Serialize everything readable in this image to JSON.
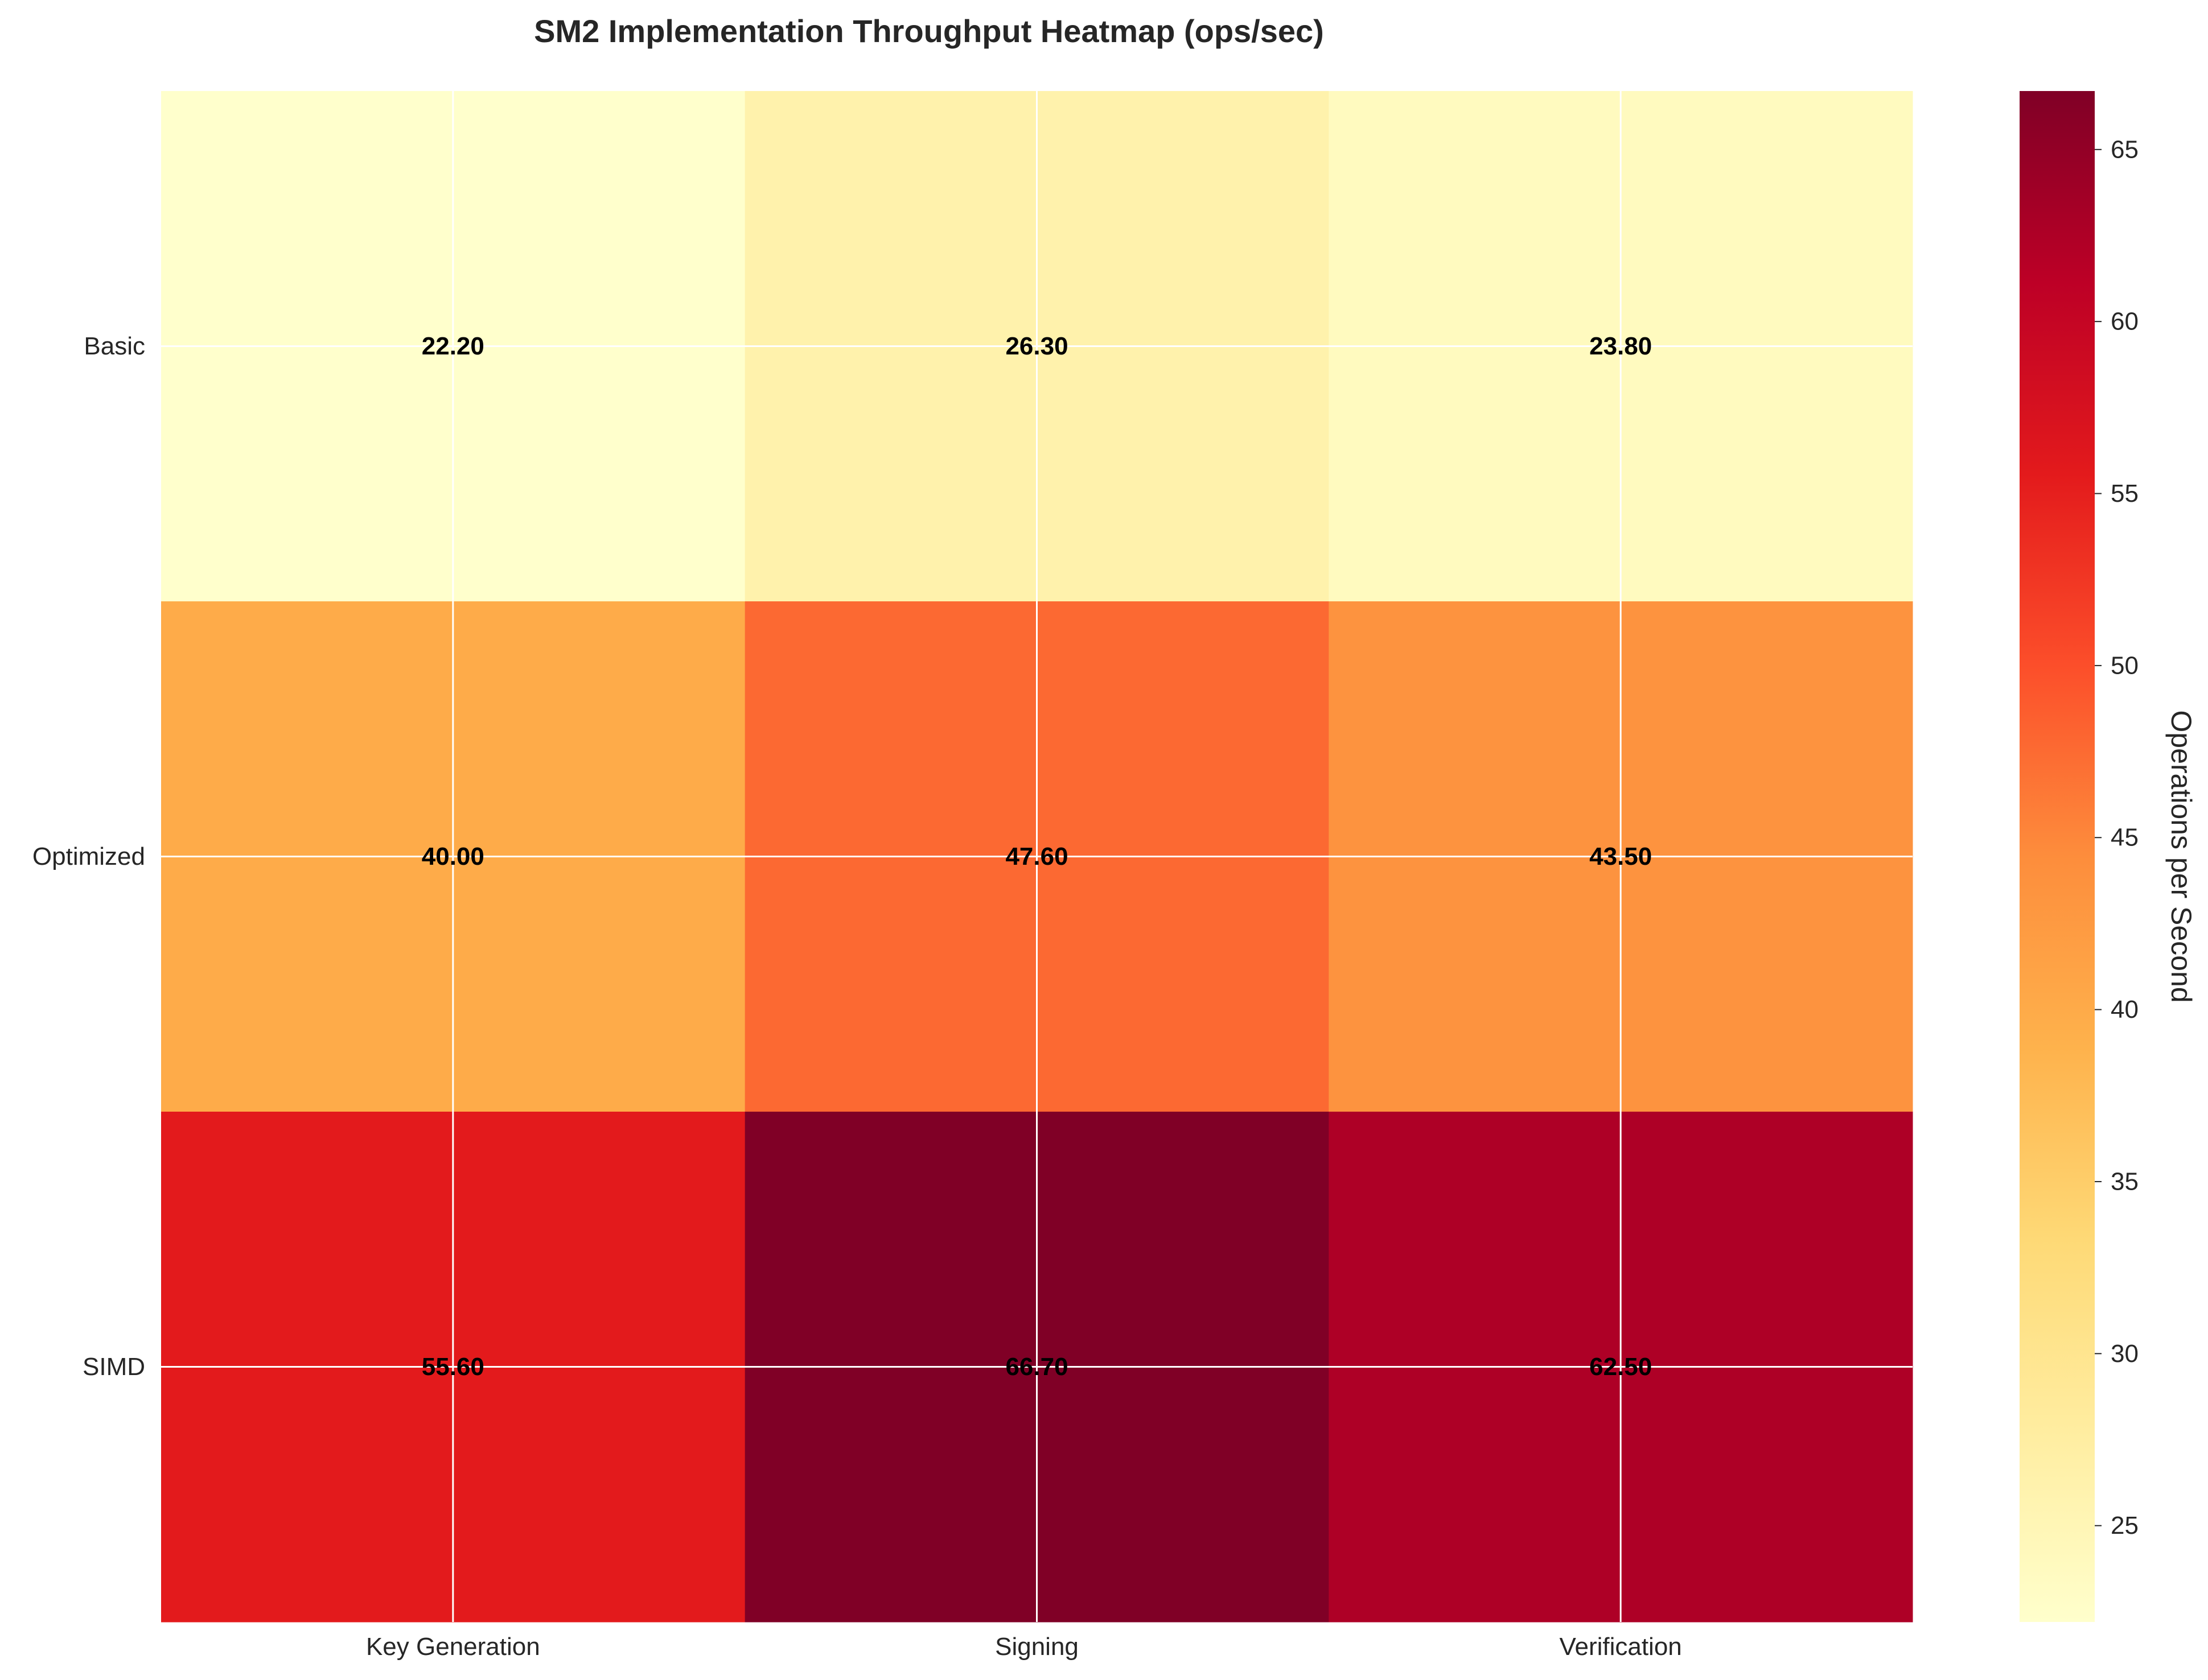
{
  "chart_data": {
    "type": "heatmap",
    "title": "SM2 Implementation Throughput Heatmap (ops/sec)",
    "rows": [
      "Basic",
      "Optimized",
      "SIMD"
    ],
    "columns": [
      "Key Generation",
      "Signing",
      "Verification"
    ],
    "values": [
      [
        22.2,
        26.3,
        23.8
      ],
      [
        40.0,
        47.6,
        43.5
      ],
      [
        55.6,
        66.7,
        62.5
      ]
    ],
    "value_labels": [
      [
        "22.20",
        "26.30",
        "23.80"
      ],
      [
        "40.00",
        "47.60",
        "43.50"
      ],
      [
        "55.60",
        "66.70",
        "62.50"
      ]
    ],
    "colormap": "YlOrRd",
    "colormap_stops": [
      "#ffffcc",
      "#ffeda0",
      "#fed976",
      "#feb24c",
      "#fd8d3c",
      "#fc4e2a",
      "#e31a1c",
      "#bd0026",
      "#800026"
    ],
    "vmin": 22.2,
    "vmax": 66.7,
    "colorbar": {
      "label": "Operations per Second",
      "ticks": [
        25,
        30,
        35,
        40,
        45,
        50,
        55,
        60,
        65
      ],
      "tick_labels": [
        "25",
        "30",
        "35",
        "40",
        "45",
        "50",
        "55",
        "60",
        "65"
      ]
    },
    "grid": true,
    "grid_color": "#ffffff",
    "label_color": "#000000"
  }
}
